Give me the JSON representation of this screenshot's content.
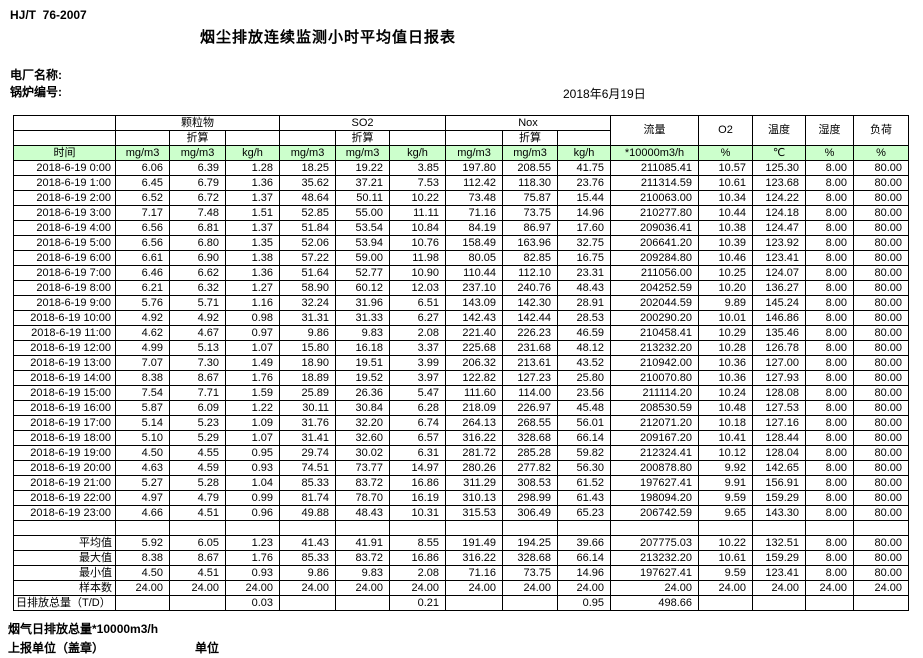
{
  "page": {
    "standard_no": "HJ/T  76-2007",
    "title": "烟尘排放连续监测小时平均值日报表",
    "plant_label": "电厂名称:",
    "boiler_label": "锅炉编号:",
    "date": "2018年6月19日"
  },
  "colors": {
    "header_green": "#ccffcc",
    "border": "#000000",
    "background": "#ffffff"
  },
  "table": {
    "header": {
      "time": "时间",
      "pm": "颗粒物",
      "so2": "SO2",
      "nox": "Nox",
      "converted": "折算",
      "flow": "流量",
      "o2": "O2",
      "temp": "温度",
      "humidity": "湿度",
      "load": "负荷"
    },
    "units": [
      "mg/m3",
      "mg/m3",
      "kg/h",
      "mg/m3",
      "mg/m3",
      "kg/h",
      "mg/m3",
      "mg/m3",
      "kg/h",
      "*10000m3/h",
      "%",
      "℃",
      "%",
      "%"
    ],
    "rows": [
      {
        "time": "2018-6-19 0:00",
        "values": [
          "6.06",
          "6.39",
          "1.28",
          "18.25",
          "19.22",
          "3.85",
          "197.80",
          "208.55",
          "41.75",
          "211085.41",
          "10.57",
          "125.30",
          "8.00",
          "80.00"
        ]
      },
      {
        "time": "2018-6-19 1:00",
        "values": [
          "6.45",
          "6.79",
          "1.36",
          "35.62",
          "37.21",
          "7.53",
          "112.42",
          "118.30",
          "23.76",
          "211314.59",
          "10.61",
          "123.68",
          "8.00",
          "80.00"
        ]
      },
      {
        "time": "2018-6-19 2:00",
        "values": [
          "6.52",
          "6.72",
          "1.37",
          "48.64",
          "50.11",
          "10.22",
          "73.48",
          "75.87",
          "15.44",
          "210063.00",
          "10.34",
          "124.22",
          "8.00",
          "80.00"
        ]
      },
      {
        "time": "2018-6-19 3:00",
        "values": [
          "7.17",
          "7.48",
          "1.51",
          "52.85",
          "55.00",
          "11.11",
          "71.16",
          "73.75",
          "14.96",
          "210277.80",
          "10.44",
          "124.18",
          "8.00",
          "80.00"
        ]
      },
      {
        "time": "2018-6-19 4:00",
        "values": [
          "6.56",
          "6.81",
          "1.37",
          "51.84",
          "53.54",
          "10.84",
          "84.19",
          "86.97",
          "17.60",
          "209036.41",
          "10.38",
          "124.47",
          "8.00",
          "80.00"
        ]
      },
      {
        "time": "2018-6-19 5:00",
        "values": [
          "6.56",
          "6.80",
          "1.35",
          "52.06",
          "53.94",
          "10.76",
          "158.49",
          "163.96",
          "32.75",
          "206641.20",
          "10.39",
          "123.92",
          "8.00",
          "80.00"
        ]
      },
      {
        "time": "2018-6-19 6:00",
        "values": [
          "6.61",
          "6.90",
          "1.38",
          "57.22",
          "59.00",
          "11.98",
          "80.05",
          "82.85",
          "16.75",
          "209284.80",
          "10.46",
          "123.41",
          "8.00",
          "80.00"
        ]
      },
      {
        "time": "2018-6-19 7:00",
        "values": [
          "6.46",
          "6.62",
          "1.36",
          "51.64",
          "52.77",
          "10.90",
          "110.44",
          "112.10",
          "23.31",
          "211056.00",
          "10.25",
          "124.07",
          "8.00",
          "80.00"
        ]
      },
      {
        "time": "2018-6-19 8:00",
        "values": [
          "6.21",
          "6.32",
          "1.27",
          "58.90",
          "60.12",
          "12.03",
          "237.10",
          "240.76",
          "48.43",
          "204252.59",
          "10.20",
          "136.27",
          "8.00",
          "80.00"
        ]
      },
      {
        "time": "2018-6-19 9:00",
        "values": [
          "5.76",
          "5.71",
          "1.16",
          "32.24",
          "31.96",
          "6.51",
          "143.09",
          "142.30",
          "28.91",
          "202044.59",
          "9.89",
          "145.24",
          "8.00",
          "80.00"
        ]
      },
      {
        "time": "2018-6-19 10:00",
        "values": [
          "4.92",
          "4.92",
          "0.98",
          "31.31",
          "31.33",
          "6.27",
          "142.43",
          "142.44",
          "28.53",
          "200290.20",
          "10.01",
          "146.86",
          "8.00",
          "80.00"
        ]
      },
      {
        "time": "2018-6-19 11:00",
        "values": [
          "4.62",
          "4.67",
          "0.97",
          "9.86",
          "9.83",
          "2.08",
          "221.40",
          "226.23",
          "46.59",
          "210458.41",
          "10.29",
          "135.46",
          "8.00",
          "80.00"
        ]
      },
      {
        "time": "2018-6-19 12:00",
        "values": [
          "4.99",
          "5.13",
          "1.07",
          "15.80",
          "16.18",
          "3.37",
          "225.68",
          "231.68",
          "48.12",
          "213232.20",
          "10.28",
          "126.78",
          "8.00",
          "80.00"
        ]
      },
      {
        "time": "2018-6-19 13:00",
        "values": [
          "7.07",
          "7.30",
          "1.49",
          "18.90",
          "19.51",
          "3.99",
          "206.32",
          "213.61",
          "43.52",
          "210942.00",
          "10.36",
          "127.00",
          "8.00",
          "80.00"
        ]
      },
      {
        "time": "2018-6-19 14:00",
        "values": [
          "8.38",
          "8.67",
          "1.76",
          "18.89",
          "19.52",
          "3.97",
          "122.82",
          "127.23",
          "25.80",
          "210070.80",
          "10.36",
          "127.93",
          "8.00",
          "80.00"
        ]
      },
      {
        "time": "2018-6-19 15:00",
        "values": [
          "7.54",
          "7.71",
          "1.59",
          "25.89",
          "26.36",
          "5.47",
          "111.60",
          "114.00",
          "23.56",
          "211114.20",
          "10.24",
          "128.08",
          "8.00",
          "80.00"
        ]
      },
      {
        "time": "2018-6-19 16:00",
        "values": [
          "5.87",
          "6.09",
          "1.22",
          "30.11",
          "30.84",
          "6.28",
          "218.09",
          "226.97",
          "45.48",
          "208530.59",
          "10.48",
          "127.53",
          "8.00",
          "80.00"
        ]
      },
      {
        "time": "2018-6-19 17:00",
        "values": [
          "5.14",
          "5.23",
          "1.09",
          "31.76",
          "32.20",
          "6.74",
          "264.13",
          "268.55",
          "56.01",
          "212071.20",
          "10.18",
          "127.16",
          "8.00",
          "80.00"
        ]
      },
      {
        "time": "2018-6-19 18:00",
        "values": [
          "5.10",
          "5.29",
          "1.07",
          "31.41",
          "32.60",
          "6.57",
          "316.22",
          "328.68",
          "66.14",
          "209167.20",
          "10.41",
          "128.44",
          "8.00",
          "80.00"
        ]
      },
      {
        "time": "2018-6-19 19:00",
        "values": [
          "4.50",
          "4.55",
          "0.95",
          "29.74",
          "30.02",
          "6.31",
          "281.72",
          "285.28",
          "59.82",
          "212324.41",
          "10.12",
          "128.04",
          "8.00",
          "80.00"
        ]
      },
      {
        "time": "2018-6-19 20:00",
        "values": [
          "4.63",
          "4.59",
          "0.93",
          "74.51",
          "73.77",
          "14.97",
          "280.26",
          "277.82",
          "56.30",
          "200878.80",
          "9.92",
          "142.65",
          "8.00",
          "80.00"
        ]
      },
      {
        "time": "2018-6-19 21:00",
        "values": [
          "5.27",
          "5.28",
          "1.04",
          "85.33",
          "83.72",
          "16.86",
          "311.29",
          "308.53",
          "61.52",
          "197627.41",
          "9.91",
          "156.91",
          "8.00",
          "80.00"
        ]
      },
      {
        "time": "2018-6-19 22:00",
        "values": [
          "4.97",
          "4.79",
          "0.99",
          "81.74",
          "78.70",
          "16.19",
          "310.13",
          "298.99",
          "61.43",
          "198094.20",
          "9.59",
          "159.29",
          "8.00",
          "80.00"
        ]
      },
      {
        "time": "2018-6-19 23:00",
        "values": [
          "4.66",
          "4.51",
          "0.96",
          "49.88",
          "48.43",
          "10.31",
          "315.53",
          "306.49",
          "65.23",
          "206742.59",
          "9.65",
          "143.30",
          "8.00",
          "80.00"
        ]
      }
    ],
    "summary_rows": [
      {
        "label": "平均值",
        "values": [
          "5.92",
          "6.05",
          "1.23",
          "41.43",
          "41.91",
          "8.55",
          "191.49",
          "194.25",
          "39.66",
          "207775.03",
          "10.22",
          "132.51",
          "8.00",
          "80.00"
        ]
      },
      {
        "label": "最大值",
        "values": [
          "8.38",
          "8.67",
          "1.76",
          "85.33",
          "83.72",
          "16.86",
          "316.22",
          "328.68",
          "66.14",
          "213232.20",
          "10.61",
          "159.29",
          "8.00",
          "80.00"
        ]
      },
      {
        "label": "最小值",
        "values": [
          "4.50",
          "4.51",
          "0.93",
          "9.86",
          "9.83",
          "2.08",
          "71.16",
          "73.75",
          "14.96",
          "197627.41",
          "9.59",
          "123.41",
          "8.00",
          "80.00"
        ]
      },
      {
        "label": "样本数",
        "values": [
          "24.00",
          "24.00",
          "24.00",
          "24.00",
          "24.00",
          "24.00",
          "24.00",
          "24.00",
          "24.00",
          "24.00",
          "24.00",
          "24.00",
          "24.00",
          "24.00"
        ]
      }
    ],
    "total_row": {
      "label": "日排放总量（T/D）",
      "values": [
        "",
        "",
        "0.03",
        "",
        "",
        "0.21",
        "",
        "",
        "0.95",
        "498.66",
        "",
        "",
        "",
        ""
      ]
    }
  },
  "footer": {
    "flow_note": "烟气日排放总量*10000m3/h",
    "report_unit_label": "上报单位（盖章）",
    "unit_label": "单位"
  }
}
